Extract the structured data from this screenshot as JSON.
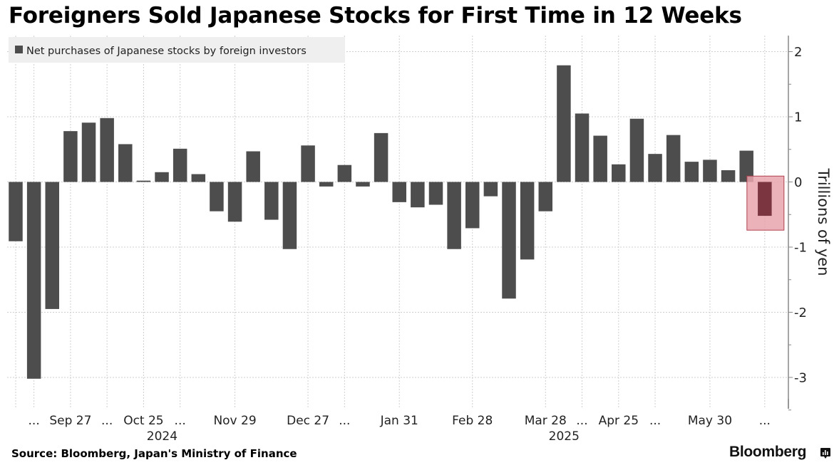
{
  "header": {
    "title": "Foreigners Sold Japanese Stocks for First Time in 12 Weeks"
  },
  "footer": {
    "source": "Source: Bloomberg, Japan's Ministry of Finance",
    "brand": "Bloomberg"
  },
  "icons": {
    "brand_icon": "bloomberg-chart-icon"
  },
  "colors": {
    "bar": "#4d4d4d",
    "highlight_bar": "#7a3540",
    "highlight_box_fill": "#e8a5ad",
    "highlight_box_stroke": "#b0404f",
    "grid": "#cfcfcf",
    "legend_bg": "#efefef"
  },
  "chart_data": {
    "type": "bar",
    "title": "Foreigners Sold Japanese Stocks for First Time in 12 Weeks",
    "legend": [
      "Net purchases of Japanese stocks by foreign investors"
    ],
    "legend_position": "top-left",
    "ylabel": "Trillions of yen",
    "ylim": [
      -3.5,
      2.2
    ],
    "yticks": [
      2,
      1,
      0,
      -1,
      -2,
      -3
    ],
    "grid": true,
    "x_tick_labels": [
      {
        "index": 1,
        "label": "..."
      },
      {
        "index": 3,
        "label": "Sep 27"
      },
      {
        "index": 5,
        "label": "..."
      },
      {
        "index": 7,
        "label": "Oct 25"
      },
      {
        "index": 9,
        "label": "..."
      },
      {
        "index": 12,
        "label": "Nov 29"
      },
      {
        "index": 16,
        "label": "Dec 27"
      },
      {
        "index": 18,
        "label": "..."
      },
      {
        "index": 21,
        "label": "Jan 31"
      },
      {
        "index": 25,
        "label": "Feb 28"
      },
      {
        "index": 29,
        "label": "Mar 28"
      },
      {
        "index": 31,
        "label": "..."
      },
      {
        "index": 33,
        "label": "Apr 25"
      },
      {
        "index": 35,
        "label": "..."
      },
      {
        "index": 38,
        "label": "May 30"
      },
      {
        "index": 41,
        "label": "..."
      }
    ],
    "year_labels": [
      {
        "index": 7,
        "label": "2024"
      },
      {
        "index": 29,
        "label": "2025"
      }
    ],
    "series": [
      {
        "name": "Net purchases of Japanese stocks by foreign investors",
        "values": [
          -0.91,
          -3.02,
          -1.95,
          0.78,
          0.91,
          0.98,
          0.58,
          0.02,
          0.15,
          0.51,
          0.12,
          -0.45,
          -0.61,
          0.47,
          -0.58,
          -1.03,
          0.56,
          -0.07,
          0.26,
          -0.07,
          0.75,
          -0.31,
          -0.39,
          -0.35,
          -1.03,
          -0.71,
          -0.22,
          -1.79,
          -1.19,
          -0.45,
          1.79,
          1.05,
          0.71,
          0.27,
          0.97,
          0.43,
          0.72,
          0.31,
          0.34,
          0.18,
          0.48,
          -0.52
        ]
      }
    ],
    "highlight": {
      "index": 41,
      "annotation": "highlighted latest week"
    }
  }
}
